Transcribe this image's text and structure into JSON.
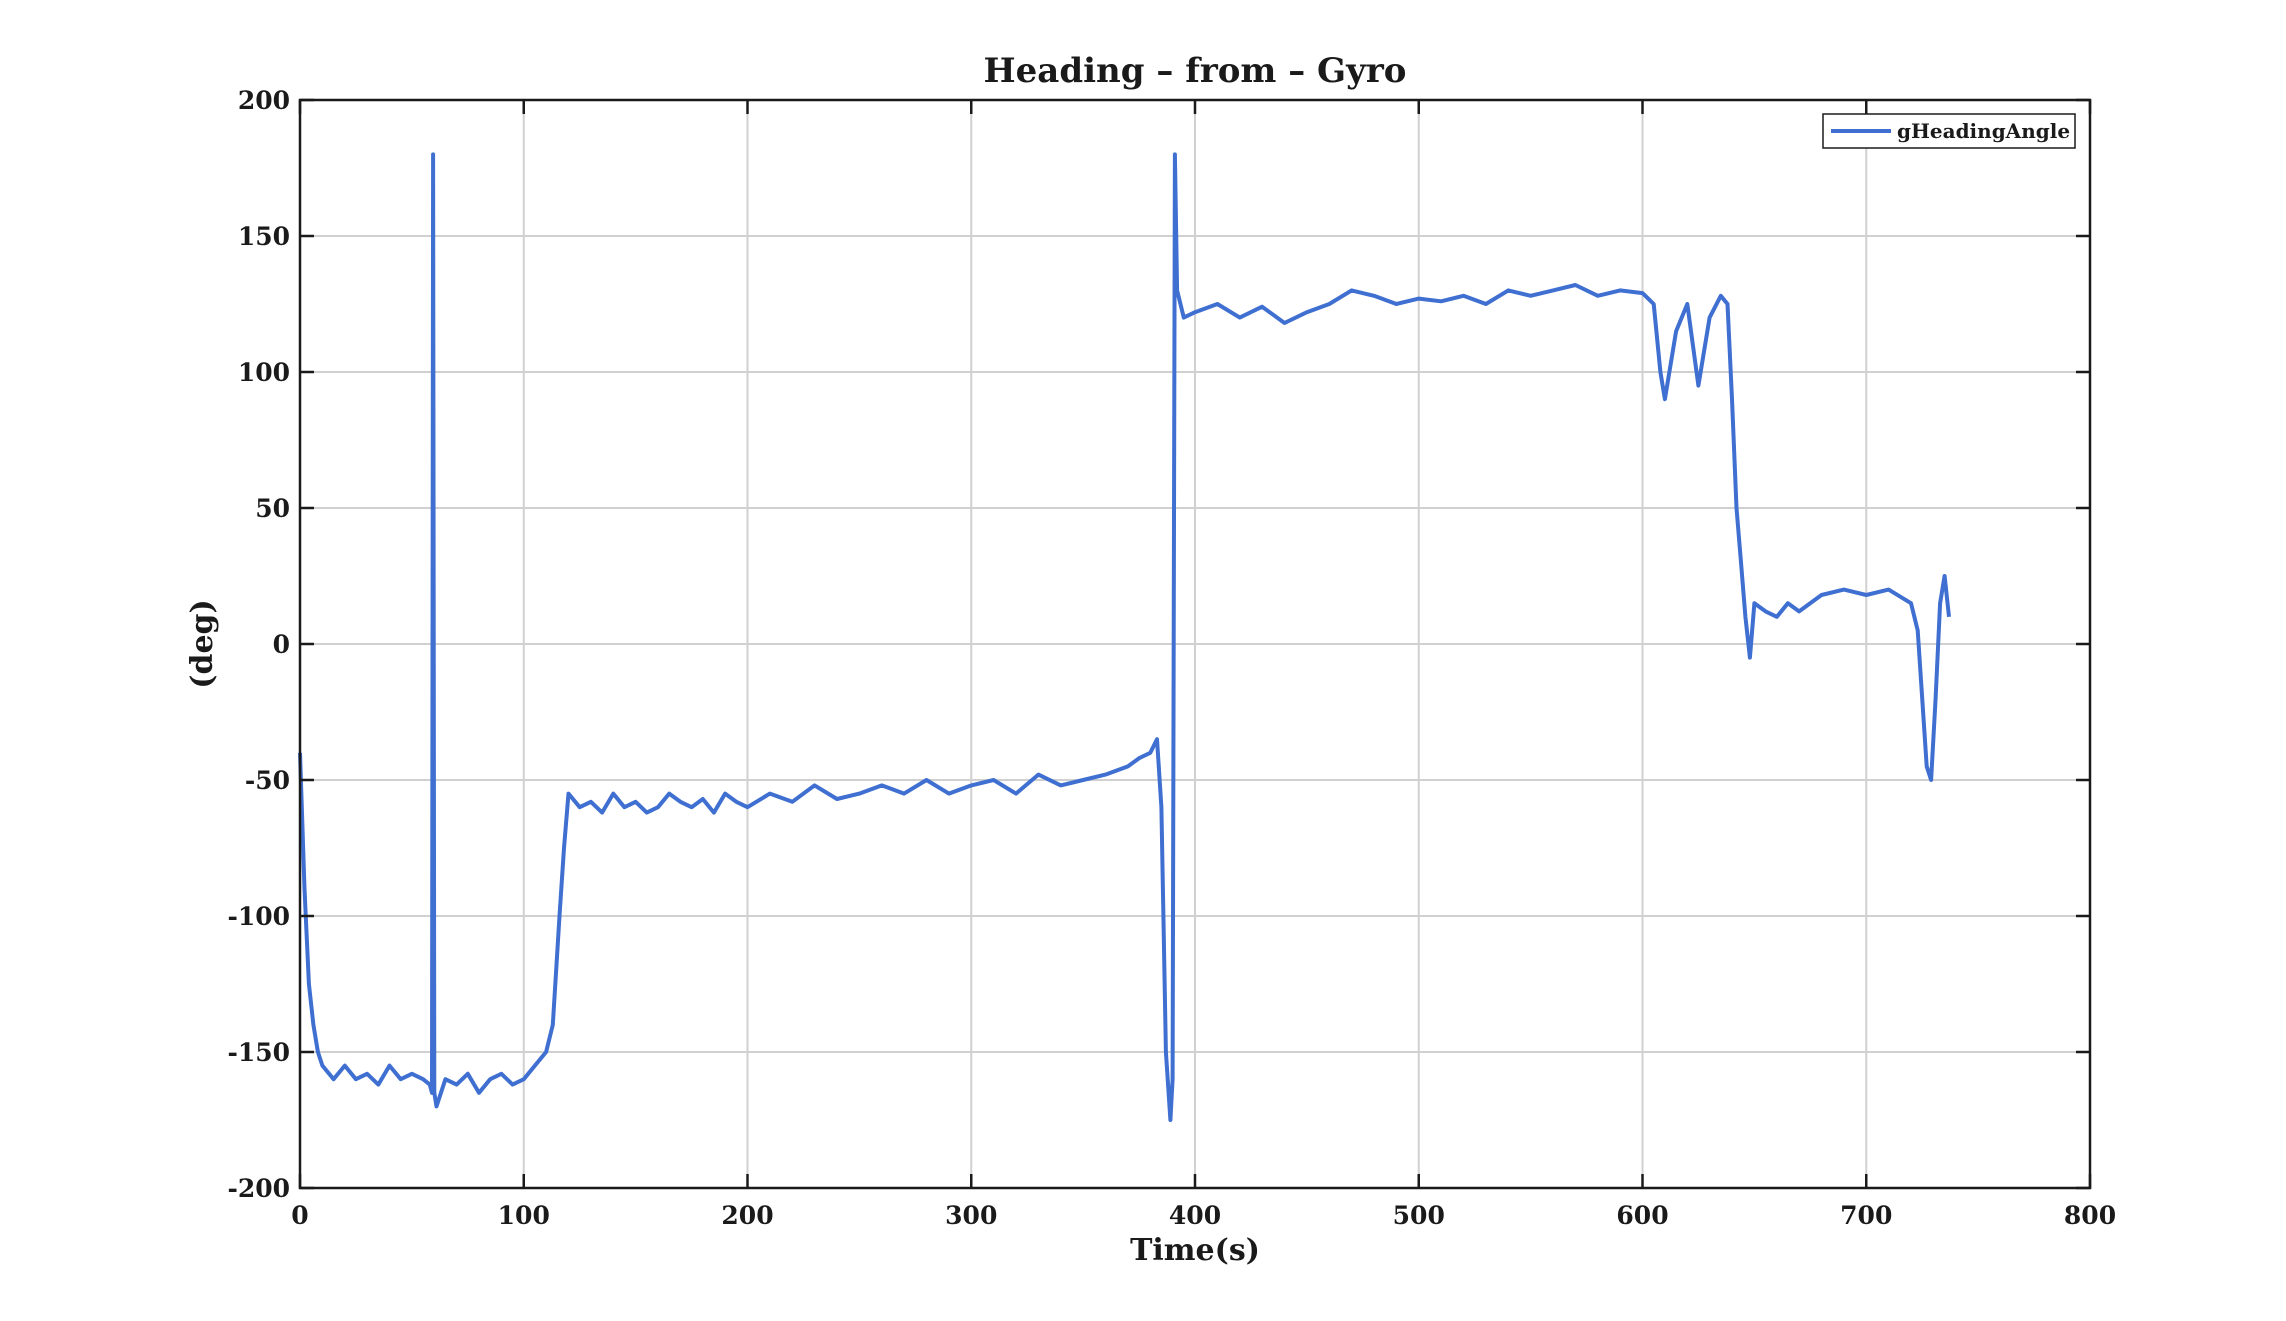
{
  "chart_data": {
    "type": "line",
    "title": "Heading – from – Gyro",
    "xlabel": "Time(s)",
    "ylabel": "(deg)",
    "xlim": [
      0,
      800
    ],
    "ylim": [
      -200,
      200
    ],
    "xticks": [
      0,
      100,
      200,
      300,
      400,
      500,
      600,
      700,
      800
    ],
    "yticks": [
      -200,
      -150,
      -100,
      -50,
      0,
      50,
      100,
      150,
      200
    ],
    "xtick_labels": [
      "0",
      "100",
      "200",
      "300",
      "400",
      "500",
      "600",
      "700",
      "800"
    ],
    "ytick_labels": [
      "-200",
      "-150",
      "-100",
      "-50",
      "0",
      "50",
      "100",
      "150",
      "200"
    ],
    "grid": true,
    "legend_position": "top-right",
    "colors": {
      "series": "#3f6fd0",
      "axes": "#1a1a1a",
      "grid": "#d0d0d0"
    },
    "series": [
      {
        "name": "gHeadingAngle",
        "x": [
          0,
          2,
          4,
          6,
          8,
          10,
          15,
          20,
          25,
          30,
          35,
          40,
          45,
          50,
          55,
          58,
          59,
          59.5,
          60,
          61,
          65,
          70,
          75,
          80,
          85,
          90,
          95,
          100,
          105,
          110,
          113,
          116,
          118,
          120,
          125,
          130,
          135,
          140,
          145,
          150,
          155,
          160,
          165,
          170,
          175,
          180,
          185,
          190,
          195,
          200,
          210,
          220,
          230,
          240,
          250,
          260,
          270,
          280,
          290,
          300,
          310,
          320,
          330,
          340,
          350,
          360,
          370,
          375,
          380,
          383,
          385,
          387,
          389,
          390,
          391,
          392,
          395,
          400,
          410,
          420,
          430,
          440,
          450,
          460,
          470,
          480,
          490,
          500,
          510,
          520,
          530,
          540,
          550,
          560,
          570,
          580,
          590,
          600,
          605,
          608,
          610,
          615,
          620,
          625,
          630,
          635,
          638,
          640,
          642,
          644,
          646,
          648,
          650,
          655,
          660,
          665,
          670,
          680,
          690,
          700,
          710,
          720,
          723,
          725,
          727,
          729,
          731,
          733,
          735,
          737
        ],
        "y": [
          -40,
          -90,
          -125,
          -140,
          -150,
          -155,
          -160,
          -155,
          -160,
          -158,
          -162,
          -155,
          -160,
          -158,
          -160,
          -162,
          -165,
          180,
          -165,
          -170,
          -160,
          -162,
          -158,
          -165,
          -160,
          -158,
          -162,
          -160,
          -155,
          -150,
          -140,
          -100,
          -75,
          -55,
          -60,
          -58,
          -62,
          -55,
          -60,
          -58,
          -62,
          -60,
          -55,
          -58,
          -60,
          -57,
          -62,
          -55,
          -58,
          -60,
          -55,
          -58,
          -52,
          -57,
          -55,
          -52,
          -55,
          -50,
          -55,
          -52,
          -50,
          -55,
          -48,
          -52,
          -50,
          -48,
          -45,
          -42,
          -40,
          -35,
          -60,
          -150,
          -175,
          -160,
          180,
          130,
          120,
          122,
          125,
          120,
          124,
          118,
          122,
          125,
          130,
          128,
          125,
          127,
          126,
          128,
          125,
          130,
          128,
          130,
          132,
          128,
          130,
          129,
          125,
          100,
          90,
          115,
          125,
          95,
          120,
          128,
          125,
          90,
          50,
          30,
          10,
          -5,
          15,
          12,
          10,
          15,
          12,
          18,
          20,
          18,
          20,
          15,
          5,
          -20,
          -45,
          -50,
          -20,
          15,
          25,
          10
        ]
      }
    ]
  }
}
